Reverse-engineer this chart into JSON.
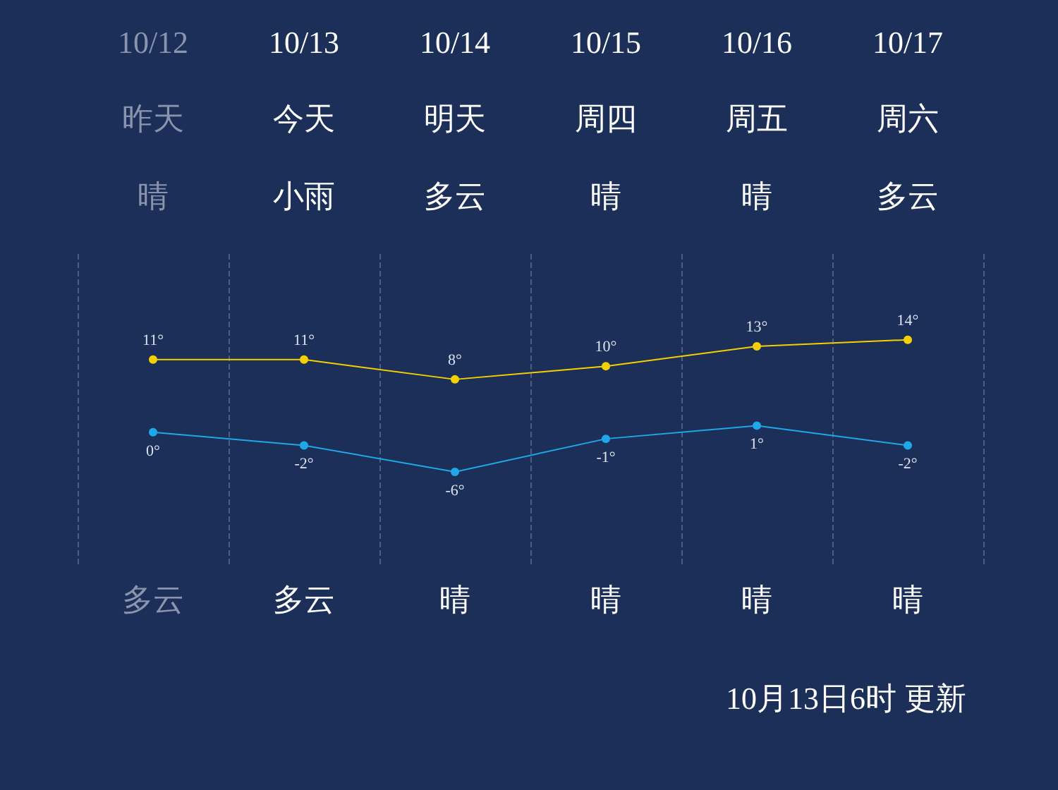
{
  "chart_data": {
    "type": "line",
    "categories": [
      "10/12",
      "10/13",
      "10/14",
      "10/15",
      "10/16",
      "10/17"
    ],
    "series": [
      {
        "color": "#f5d000",
        "values": [
          11,
          11,
          8,
          10,
          13,
          14
        ],
        "value_labels": [
          "11°",
          "11°",
          "8°",
          "10°",
          "13°",
          "14°"
        ]
      },
      {
        "color": "#1ea8e8",
        "values": [
          0,
          -2,
          -6,
          -1,
          1,
          -2
        ],
        "value_labels": [
          "0°",
          "-2°",
          "-6°",
          "-1°",
          "1°",
          "-2°"
        ]
      }
    ],
    "ylim": [
      -20,
      27
    ],
    "tick_labels": "x",
    "marker": "circle",
    "line_style": "solid",
    "grid": "x",
    "annotations": [
      "昨天",
      "今天",
      "明天",
      "周四",
      "周五",
      "周六",
      "晴",
      "小雨",
      "多云",
      "晴",
      "晴",
      "多云",
      "多云",
      "多云",
      "晴",
      "晴",
      "晴",
      "晴",
      "10月13日6时 更新"
    ]
  }
}
